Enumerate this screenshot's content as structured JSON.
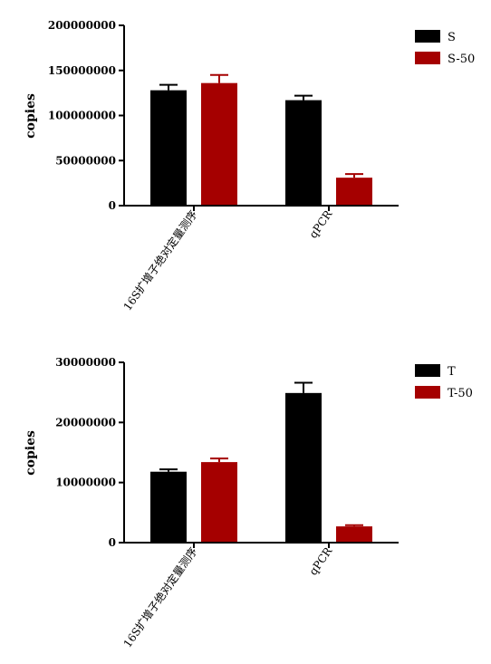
{
  "chart_data": [
    {
      "type": "bar",
      "ylabel": "copies",
      "categories": [
        "16S扩增子绝对定量测序",
        "qPCR"
      ],
      "ylim": [
        0,
        200000000
      ],
      "yticks": [
        "0",
        "50000000",
        "100000000",
        "150000000",
        "200000000"
      ],
      "error_bars": true,
      "legend_position": "top-right",
      "series": [
        {
          "name": "S",
          "color": "#000000",
          "values": [
            128000000,
            117000000
          ],
          "errors": [
            6000000,
            5000000
          ]
        },
        {
          "name": "S-50",
          "color": "#a50000",
          "values": [
            136000000,
            31000000
          ],
          "errors": [
            9000000,
            4000000
          ]
        }
      ]
    },
    {
      "type": "bar",
      "ylabel": "copies",
      "categories": [
        "16S扩增子绝对定量测序",
        "qPCR"
      ],
      "ylim": [
        0,
        30000000
      ],
      "yticks": [
        "0",
        "10000000",
        "20000000",
        "30000000"
      ],
      "error_bars": true,
      "legend_position": "top-right",
      "series": [
        {
          "name": "T",
          "color": "#000000",
          "values": [
            11800000,
            24900000
          ],
          "errors": [
            400000,
            1700000
          ]
        },
        {
          "name": "T-50",
          "color": "#a50000",
          "values": [
            13400000,
            2700000
          ],
          "errors": [
            600000,
            200000
          ]
        }
      ]
    }
  ]
}
